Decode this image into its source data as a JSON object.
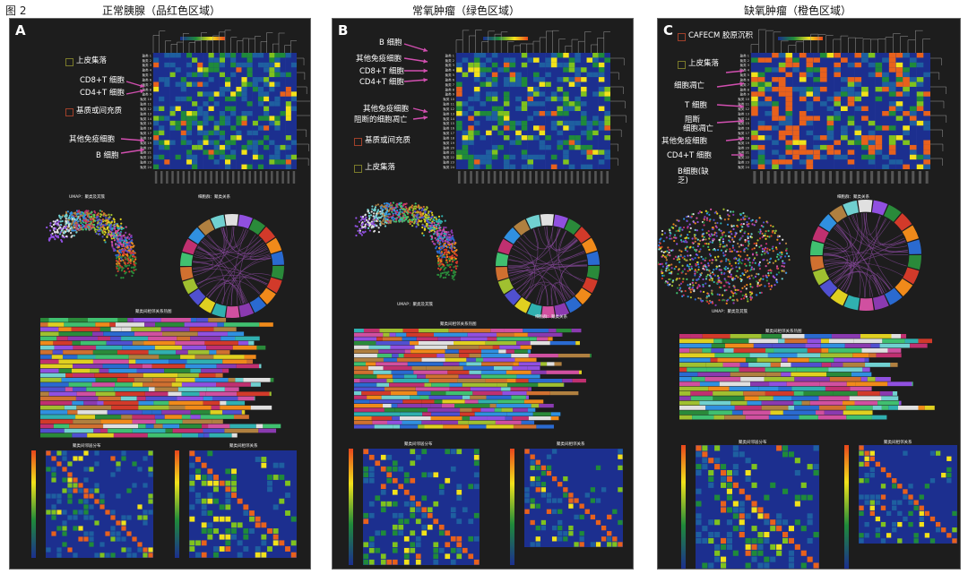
{
  "figure_label": "图 2",
  "panels": [
    {
      "letter": "A",
      "title": "正常胰腺（品红色区域）",
      "annotations": {
        "epithelial": "上皮集落",
        "cd8": "CD8+T 细胞",
        "cd4": "CD4+T 细胞",
        "stroma": "基质或间充质",
        "other_immune": "其他免疫细胞",
        "bcell": "B 细胞"
      },
      "umap_title": "UMAP：聚类及其簇",
      "circos_title": "细胞群：聚类关系",
      "bar_title": "聚类间相邻关系热图",
      "heat1_title": "聚类间邻居分布",
      "heat2_title": "聚类间相邻关系"
    },
    {
      "letter": "B",
      "title": "常氧肿瘤（绿色区域）",
      "annotations": {
        "bcell": "B 细胞",
        "other_immune": "其他免疫细胞",
        "cd8": "CD8+T 细胞",
        "cd4": "CD4+T 细胞",
        "other_immune2": "其他免疫细胞",
        "apoptosis": "阻断的细胞凋亡",
        "stroma": "基质或间充质",
        "epithelial": "上皮集落"
      },
      "umap_title": "UMAP：聚类及其簇",
      "circos_title": "细胞群：聚类关系",
      "bar_title": "聚类间相邻关系热图",
      "heat1_title": "聚类间邻居分布",
      "heat2_title": "聚类间相邻关系"
    },
    {
      "letter": "C",
      "title": "缺氧肿瘤（橙色区域）",
      "annotations": {
        "cafecm": "CAFECM 胶原沉积",
        "epithelial": "上皮集落",
        "death": "细胞凋亡",
        "tcell": "T 细胞",
        "block1": "阻断",
        "block2": "细胞凋亡",
        "other_immune": "其他免疫细胞",
        "cd4": "CD4+T 细胞",
        "bcell": "B细胞(缺乏)"
      },
      "umap_title": "UMAP：聚类及其簇",
      "circos_title": "细胞群：聚类关系",
      "bar_title": "聚类间相邻关系热图",
      "heat1_title": "聚类间邻居分布",
      "heat2_title": "聚类间相邻关系"
    }
  ],
  "colors": {
    "panel_bg": "#1d1d1d",
    "heatmap_low": "#1a2a8a",
    "heatmap_mid": "#1f8a3a",
    "heatmap_high": "#f2e21a",
    "heatmap_peak": "#e8461c",
    "arrow": "#d24fb0"
  }
}
